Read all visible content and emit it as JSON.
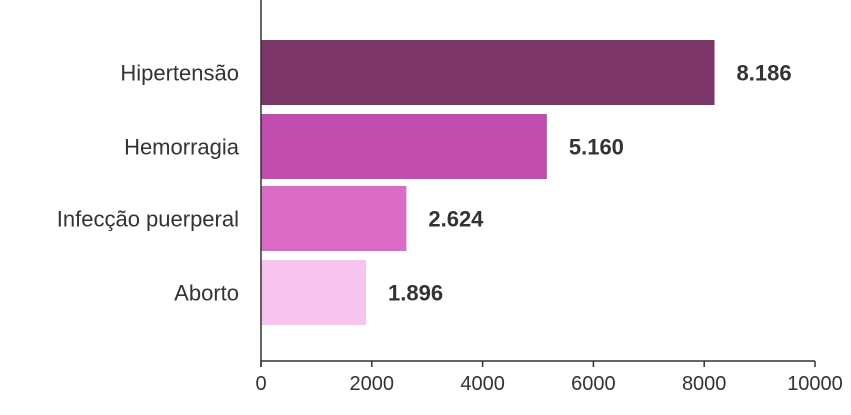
{
  "chart_data": {
    "type": "bar",
    "orientation": "horizontal",
    "title": "",
    "xlabel": "",
    "ylabel": "",
    "categories": [
      "Hipertensão",
      "Hemorragia",
      "Infecção puerperal",
      "Aborto"
    ],
    "values": [
      8186,
      5160,
      2624,
      1896
    ],
    "value_labels": [
      "8.186",
      "5.160",
      "2.624",
      "1.896"
    ],
    "bar_colors": [
      "#7b3568",
      "#c04cad",
      "#d96ac6",
      "#f6c4ef"
    ],
    "xlim": [
      0,
      10000
    ],
    "xticks": [
      0,
      2000,
      4000,
      6000,
      8000,
      10000
    ],
    "xtick_labels": [
      "0",
      "2000",
      "4000",
      "6000",
      "8000",
      "10000"
    ],
    "grid": false,
    "legend": "none"
  }
}
